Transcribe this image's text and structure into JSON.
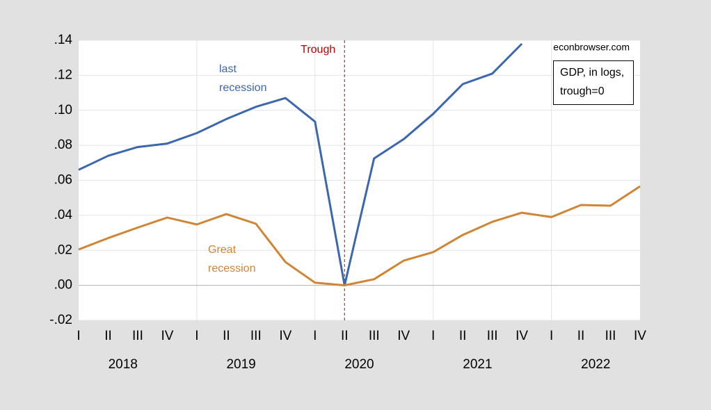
{
  "chart_data": {
    "type": "line",
    "source": "econbrowser.com",
    "box_label": "GDP, in logs, trough=0",
    "categories": [
      "I",
      "II",
      "III",
      "IV",
      "I",
      "II",
      "III",
      "IV",
      "I",
      "II",
      "III",
      "IV",
      "I",
      "II",
      "III",
      "IV",
      "I",
      "II",
      "III",
      "IV"
    ],
    "years": [
      "2018",
      "2019",
      "2020",
      "2021",
      "2022"
    ],
    "series": [
      {
        "name": "last recession",
        "color": "#3a67ad",
        "values": [
          0.066,
          0.074,
          0.079,
          0.081,
          0.087,
          0.095,
          0.102,
          0.107,
          0.0935,
          0,
          0.0725,
          0.0835,
          0.098,
          0.115,
          0.121,
          0.138,
          null,
          null,
          null,
          null
        ]
      },
      {
        "name": "Great recession",
        "color": "#d08535",
        "values": [
          0.0205,
          0.027,
          0.033,
          0.0387,
          0.0348,
          0.0407,
          0.0352,
          0.0133,
          0.0015,
          0,
          0.0035,
          0.0141,
          0.019,
          0.0288,
          0.0363,
          0.0415,
          0.039,
          0.0459,
          0.0455,
          0.0566
        ]
      }
    ],
    "annotation": {
      "text": "Trough",
      "x": 9,
      "color": "#c00000"
    },
    "ylim": [
      -0.02,
      0.14
    ],
    "yticks": [
      {
        "value": -0.02,
        "label": "-.02"
      },
      {
        "value": 0,
        "label": ".00"
      },
      {
        "value": 0.02,
        "label": ".02"
      },
      {
        "value": 0.04,
        "label": ".04"
      },
      {
        "value": 0.06,
        "label": ".06"
      },
      {
        "value": 0.08,
        "label": ".08"
      },
      {
        "value": 0.1,
        "label": ".10"
      },
      {
        "value": 0.12,
        "label": ".12"
      },
      {
        "value": 0.14,
        "label": ".14"
      }
    ],
    "grid": true
  }
}
